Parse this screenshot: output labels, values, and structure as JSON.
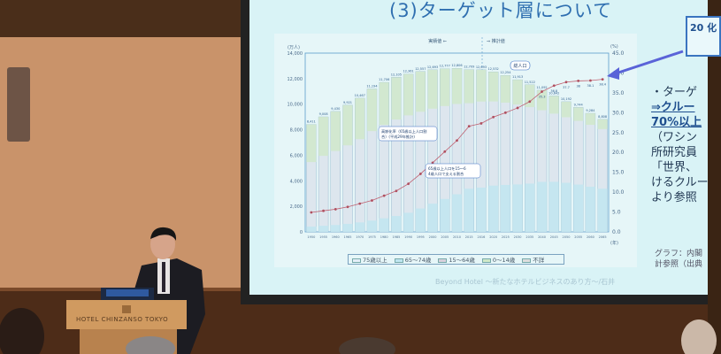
{
  "slide": {
    "title": "(3)ターゲット層について",
    "callout": "20\n化",
    "bullets": [
      "・ターゲ",
      "⇒クルー",
      "70%以上",
      "（ワシン",
      "所研究員",
      "「世界、",
      "けるクルー",
      "より参照"
    ],
    "caption": [
      "グラフ：内閣",
      "計参照（出典"
    ],
    "footer": "Beyond Hotel ～新たなホテルビジネスのあり方～/石井",
    "colors": {
      "slide_bg": "#d9f3f6",
      "accent": "#3a6fc4",
      "arrow": "#5a63d8"
    }
  },
  "podium": {
    "logo_text": "HOTEL CHINZANSO TOKYO"
  },
  "chart_data": {
    "type": "bar",
    "left_axis_unit": "(万人)",
    "right_axis_unit": "(%)",
    "x_unit": "(年)",
    "ylim": [
      0,
      14000
    ],
    "y2lim": [
      0,
      45
    ],
    "left_ticks": [
      "0",
      "2,000",
      "4,000",
      "6,000",
      "8,000",
      "10,000",
      "12,000",
      "14,000"
    ],
    "right_ticks": [
      "0.0",
      "5.0",
      "10.0",
      "15.0",
      "20.0",
      "25.0",
      "30.0",
      "35.0",
      "40.0",
      "45.0"
    ],
    "header_actual": "実績値",
    "header_projected": "推計値",
    "annotation_total": "総人口",
    "annotation_aging": "高齢化率（65歳以上人口割合）(平成29年推計)",
    "annotation_support": "65歳以上人口を15～64歳人口で支える割合",
    "categories": [
      "1950",
      "1955",
      "1960",
      "1965",
      "1970",
      "1975",
      "1980",
      "1985",
      "1990",
      "1995",
      "2000",
      "2005",
      "2010",
      "2015",
      "2016",
      "2020",
      "2025",
      "2030",
      "2035",
      "2040",
      "2045",
      "2050",
      "2055",
      "2060",
      "2065"
    ],
    "series": [
      {
        "name": "総人口",
        "values": [
          8411,
          9008,
          9430,
          9921,
          10467,
          11194,
          11706,
          12105,
          12361,
          12557,
          12693,
          12777,
          12806,
          12709,
          12693,
          12532,
          12254,
          11913,
          11522,
          11092,
          10642,
          10192,
          9744,
          9284,
          8808
        ]
      },
      {
        "name": "高齢化率",
        "values": [
          4.9,
          5.3,
          5.7,
          6.3,
          7.1,
          7.9,
          9.1,
          10.3,
          12.1,
          14.6,
          17.4,
          20.2,
          23.0,
          26.6,
          27.3,
          28.9,
          30.0,
          31.2,
          32.8,
          35.3,
          36.8,
          37.7,
          38.0,
          38.1,
          38.4
        ]
      }
    ],
    "legend": [
      "75歳以上",
      "65～74歳",
      "15～64歳",
      "0～14歳",
      "不詳"
    ]
  }
}
